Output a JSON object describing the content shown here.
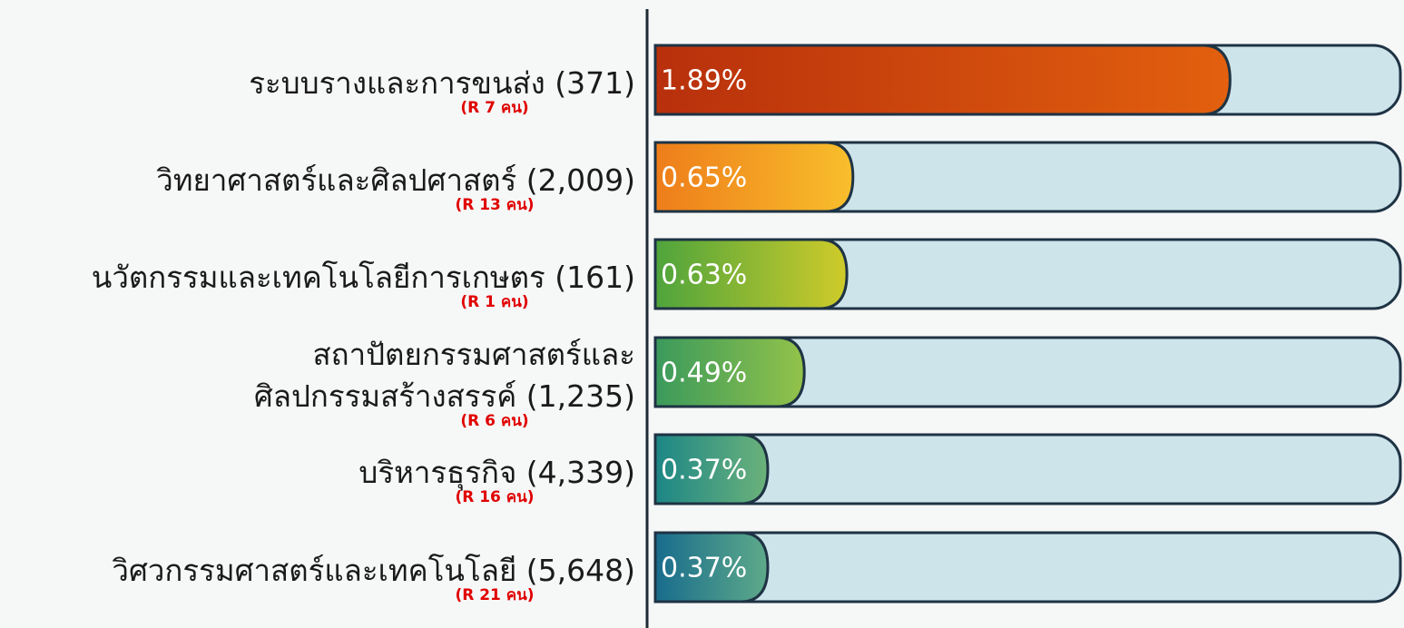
{
  "chart_data": {
    "type": "bar",
    "orientation": "horizontal",
    "categories": [
      "ระบบรางและการขนส่ง (371)",
      "วิทยาศาสตร์และศิลปศาสตร์ (2,009)",
      "นวัตกรรมและเทคโนโลยีการเกษตร (161)",
      "สถาปัตยกรรมศาสตร์และ\nศิลปกรรมสร้างสรรค์ (1,235)",
      "บริหารธุรกิจ (4,339)",
      "วิศวกรรมศาสตร์และเทคโนโลยี (5,648)"
    ],
    "annotations": [
      "(R 7 คน)",
      "(R 13 คน)",
      "(R 1 คน)",
      "(R 6 คน)",
      "(R 16 คน)",
      "(R 21 คน)"
    ],
    "values": [
      1.89,
      0.65,
      0.63,
      0.49,
      0.37,
      0.37
    ],
    "value_labels": [
      "1.89%",
      "0.65%",
      "0.63%",
      "0.49%",
      "0.37%",
      "0.37%"
    ],
    "colors": [
      [
        "#b8300c",
        "#e2600e"
      ],
      [
        "#ee7d1a",
        "#f8bf2c"
      ],
      [
        "#4ea43c",
        "#cfcb2a"
      ],
      [
        "#3a9a5c",
        "#93c24a"
      ],
      [
        "#1c8686",
        "#6cb27a"
      ],
      [
        "#186c8c",
        "#5eaa8a"
      ]
    ],
    "track_color": "#cde4ea",
    "xlim": [
      0,
      2.45
    ]
  }
}
